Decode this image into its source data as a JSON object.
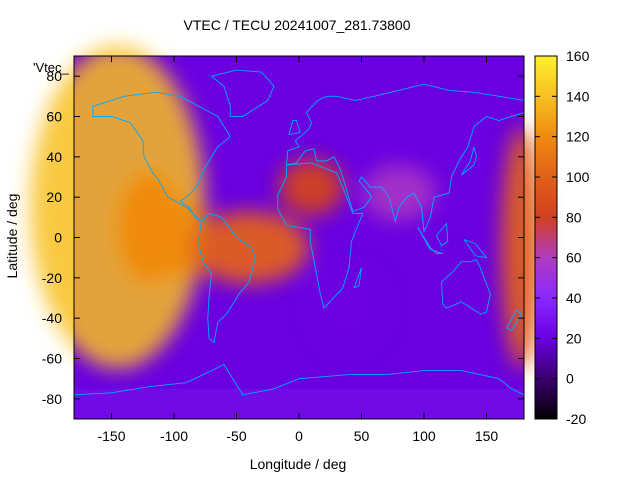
{
  "chart_data": {
    "type": "heatmap",
    "title": "VTEC / TECU 20241007_281.73800",
    "xlabel": "Longitude / deg",
    "ylabel": "Latitude / deg",
    "xlim": [
      -180,
      180
    ],
    "ylim": [
      -90,
      90
    ],
    "x_ticks": [
      -150,
      -100,
      -50,
      0,
      50,
      100,
      150
    ],
    "y_ticks": [
      -80,
      -60,
      -40,
      -20,
      0,
      20,
      40,
      60,
      80
    ],
    "colorbar": {
      "range": [
        -20,
        160
      ],
      "ticks": [
        -20,
        0,
        20,
        40,
        60,
        80,
        100,
        120,
        140,
        160
      ],
      "palette": [
        "#000000",
        "#3a0070",
        "#6a00e0",
        "#8a28ff",
        "#b03cc0",
        "#d24020",
        "#e0601a",
        "#f08a10",
        "#f8c020",
        "#fff030"
      ]
    },
    "legend": {
      "entry": "'Vtec_",
      "placement": "top-left"
    },
    "coastline_color": "#00aaff",
    "features": [
      {
        "lon": -145,
        "lat": 15,
        "value": 140
      },
      {
        "lon": -120,
        "lat": 5,
        "value": 110
      },
      {
        "lon": -95,
        "lat": 0,
        "value": 120
      },
      {
        "lon": -40,
        "lat": -5,
        "value": 100
      },
      {
        "lon": 10,
        "lat": 25,
        "value": 85
      },
      {
        "lon": 80,
        "lat": 22,
        "value": 65
      },
      {
        "lon": 178,
        "lat": -5,
        "value": 90
      },
      {
        "lon": 40,
        "lat": -35,
        "value": 10
      },
      {
        "lon": 0,
        "lat": 0,
        "value": 25
      }
    ]
  }
}
